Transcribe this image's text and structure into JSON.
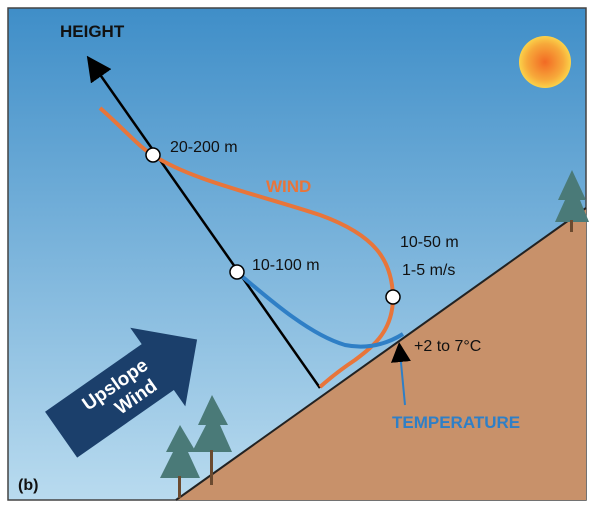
{
  "axis_label": "HEIGHT",
  "wind": {
    "label": "WIND",
    "max_height": "20-200 m",
    "jet_height": "10-50 m",
    "jet_speed": "1-5 m/s"
  },
  "temperature": {
    "label": "TEMPERATURE",
    "layer_height": "10-100 m",
    "excess": "+2 to 7°C"
  },
  "arrow": {
    "line1": "Upslope",
    "line2": "Wind"
  },
  "panel_label": "(b)"
}
